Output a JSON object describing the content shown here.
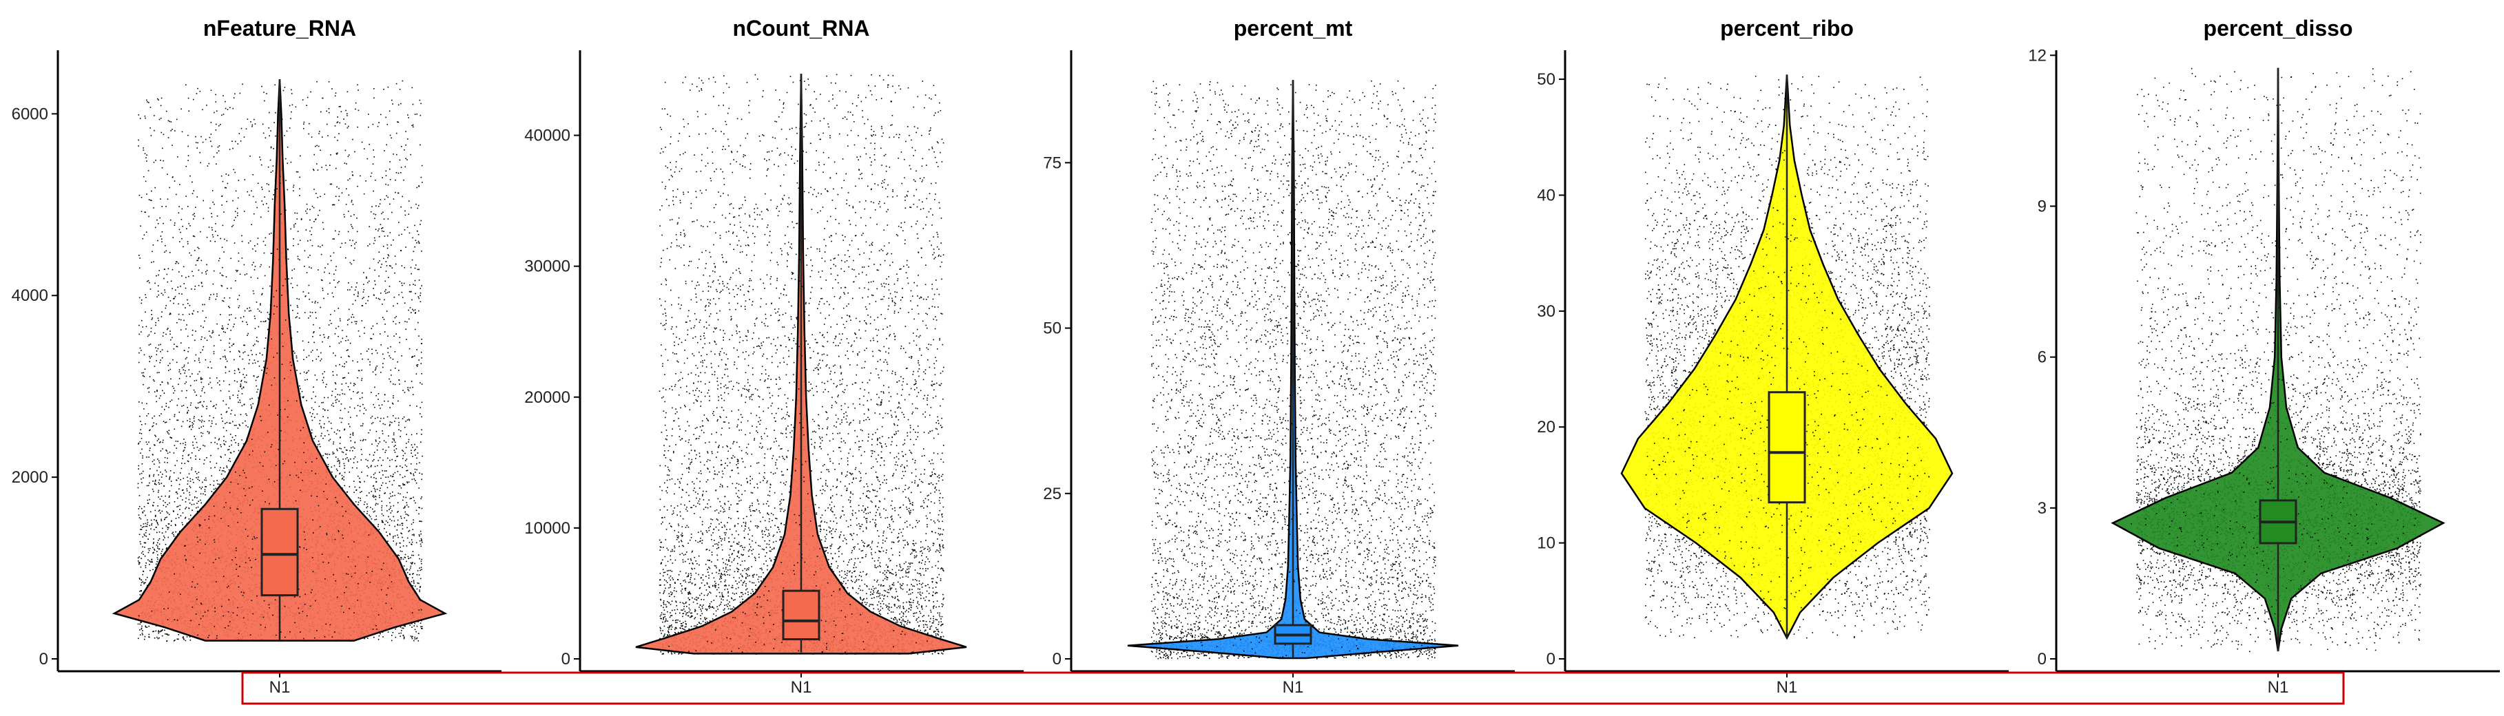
{
  "chart_data": [
    {
      "type": "violin",
      "title": "nFeature_RNA",
      "categories": [
        "N1"
      ],
      "fill": "#F46A4E",
      "ylim": [
        0,
        6700
      ],
      "yticks": [
        0,
        2000,
        4000,
        6000
      ],
      "ytick_labels": [
        "0",
        "2000",
        "4000",
        "6000"
      ],
      "box": {
        "q1": 700,
        "median": 1150,
        "q3": 1650,
        "whisker_low": 210,
        "whisker_high": 6380
      },
      "density": [
        {
          "y": 200,
          "w": 0.45
        },
        {
          "y": 350,
          "w": 0.7
        },
        {
          "y": 500,
          "w": 1.0
        },
        {
          "y": 650,
          "w": 0.85
        },
        {
          "y": 850,
          "w": 0.78
        },
        {
          "y": 1100,
          "w": 0.72
        },
        {
          "y": 1400,
          "w": 0.6
        },
        {
          "y": 1700,
          "w": 0.45
        },
        {
          "y": 2000,
          "w": 0.32
        },
        {
          "y": 2400,
          "w": 0.2
        },
        {
          "y": 2800,
          "w": 0.13
        },
        {
          "y": 3300,
          "w": 0.08
        },
        {
          "y": 3800,
          "w": 0.055
        },
        {
          "y": 4400,
          "w": 0.04
        },
        {
          "y": 5000,
          "w": 0.03
        },
        {
          "y": 5500,
          "w": 0.018
        },
        {
          "y": 6000,
          "w": 0.01
        },
        {
          "y": 6380,
          "w": 0.0
        }
      ],
      "points": {
        "count": 6200,
        "seed": 11
      }
    },
    {
      "type": "violin",
      "title": "nCount_RNA",
      "categories": [
        "N1"
      ],
      "fill": "#F46A4E",
      "ylim": [
        0,
        46500
      ],
      "yticks": [
        0,
        10000,
        20000,
        30000,
        40000
      ],
      "ytick_labels": [
        "0",
        "10000",
        "20000",
        "30000",
        "40000"
      ],
      "box": {
        "q1": 1500,
        "median": 2900,
        "q3": 5200,
        "whisker_low": 500,
        "whisker_high": 44700
      },
      "density": [
        {
          "y": 400,
          "w": 0.65
        },
        {
          "y": 900,
          "w": 1.0
        },
        {
          "y": 1600,
          "w": 0.82
        },
        {
          "y": 2500,
          "w": 0.6
        },
        {
          "y": 3600,
          "w": 0.42
        },
        {
          "y": 5000,
          "w": 0.28
        },
        {
          "y": 7000,
          "w": 0.17
        },
        {
          "y": 9500,
          "w": 0.1
        },
        {
          "y": 12500,
          "w": 0.065
        },
        {
          "y": 16000,
          "w": 0.045
        },
        {
          "y": 20000,
          "w": 0.03
        },
        {
          "y": 25000,
          "w": 0.02
        },
        {
          "y": 31000,
          "w": 0.012
        },
        {
          "y": 38000,
          "w": 0.007
        },
        {
          "y": 44700,
          "w": 0.0
        }
      ],
      "points": {
        "count": 6200,
        "seed": 23
      }
    },
    {
      "type": "violin",
      "title": "percent_mt",
      "categories": [
        "N1"
      ],
      "fill": "#1E90FF",
      "ylim": [
        0,
        92
      ],
      "yticks": [
        0,
        25,
        50,
        75
      ],
      "ytick_labels": [
        "0",
        "25",
        "50",
        "75"
      ],
      "box": {
        "q1": 2.3,
        "median": 3.6,
        "q3": 5.1,
        "whisker_low": 0.1,
        "whisker_high": 87.5
      },
      "density": [
        {
          "y": 0.1,
          "w": 0.08
        },
        {
          "y": 1.0,
          "w": 0.5
        },
        {
          "y": 2.0,
          "w": 1.0
        },
        {
          "y": 3.0,
          "w": 0.45
        },
        {
          "y": 4.0,
          "w": 0.16
        },
        {
          "y": 6.0,
          "w": 0.07
        },
        {
          "y": 9.0,
          "w": 0.045
        },
        {
          "y": 14.0,
          "w": 0.03
        },
        {
          "y": 20.0,
          "w": 0.024
        },
        {
          "y": 30.0,
          "w": 0.016
        },
        {
          "y": 45.0,
          "w": 0.011
        },
        {
          "y": 60.0,
          "w": 0.008
        },
        {
          "y": 75.0,
          "w": 0.005
        },
        {
          "y": 87.5,
          "w": 0.0
        }
      ],
      "points": {
        "count": 6200,
        "seed": 37
      }
    },
    {
      "type": "violin",
      "title": "percent_ribo",
      "categories": [
        "N1"
      ],
      "fill": "#FFFF00",
      "ylim": [
        0,
        52.5
      ],
      "yticks": [
        0,
        10,
        20,
        30,
        40,
        50
      ],
      "ytick_labels": [
        "0",
        "10",
        "20",
        "30",
        "40",
        "50"
      ],
      "box": {
        "q1": 13.5,
        "median": 17.8,
        "q3": 23.0,
        "whisker_low": 1.8,
        "whisker_high": 50.4
      },
      "density": [
        {
          "y": 1.8,
          "w": 0.0
        },
        {
          "y": 4.0,
          "w": 0.08
        },
        {
          "y": 7.0,
          "w": 0.28
        },
        {
          "y": 10.0,
          "w": 0.55
        },
        {
          "y": 13.0,
          "w": 0.86
        },
        {
          "y": 16.0,
          "w": 1.0
        },
        {
          "y": 19.0,
          "w": 0.9
        },
        {
          "y": 22.0,
          "w": 0.72
        },
        {
          "y": 25.0,
          "w": 0.56
        },
        {
          "y": 28.0,
          "w": 0.43
        },
        {
          "y": 31.0,
          "w": 0.31
        },
        {
          "y": 34.0,
          "w": 0.22
        },
        {
          "y": 37.0,
          "w": 0.14
        },
        {
          "y": 40.0,
          "w": 0.09
        },
        {
          "y": 43.0,
          "w": 0.045
        },
        {
          "y": 46.0,
          "w": 0.018
        },
        {
          "y": 50.4,
          "w": 0.0
        }
      ],
      "points": {
        "count": 6200,
        "seed": 53
      }
    },
    {
      "type": "violin",
      "title": "percent_disso",
      "categories": [
        "N1"
      ],
      "fill": "#228B22",
      "ylim": [
        0,
        12.1
      ],
      "yticks": [
        0,
        3,
        6,
        9,
        12
      ],
      "ytick_labels": [
        "0",
        "3",
        "6",
        "9",
        "12"
      ],
      "box": {
        "q1": 2.3,
        "median": 2.72,
        "q3": 3.15,
        "whisker_low": 0.15,
        "whisker_high": 11.75
      },
      "density": [
        {
          "y": 0.15,
          "w": 0.0
        },
        {
          "y": 0.6,
          "w": 0.02
        },
        {
          "y": 1.2,
          "w": 0.08
        },
        {
          "y": 1.7,
          "w": 0.26
        },
        {
          "y": 2.2,
          "w": 0.72
        },
        {
          "y": 2.7,
          "w": 1.0
        },
        {
          "y": 3.2,
          "w": 0.68
        },
        {
          "y": 3.7,
          "w": 0.28
        },
        {
          "y": 4.2,
          "w": 0.12
        },
        {
          "y": 5.0,
          "w": 0.05
        },
        {
          "y": 6.0,
          "w": 0.02
        },
        {
          "y": 7.5,
          "w": 0.01
        },
        {
          "y": 9.5,
          "w": 0.004
        },
        {
          "y": 11.75,
          "w": 0.0
        }
      ],
      "points": {
        "count": 6200,
        "seed": 71
      }
    }
  ]
}
